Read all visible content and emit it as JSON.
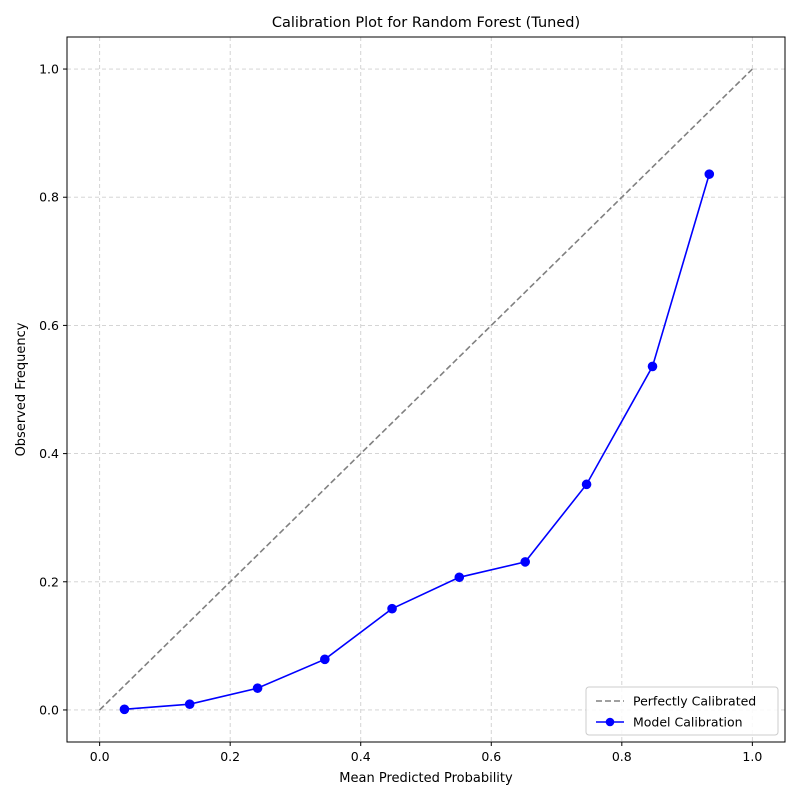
{
  "chart_data": {
    "type": "line",
    "title": "Calibration Plot for Random Forest (Tuned)",
    "xlabel": "Mean Predicted Probability",
    "ylabel": "Observed Frequency",
    "xlim": [
      -0.05,
      1.05
    ],
    "ylim": [
      -0.05,
      1.05
    ],
    "xticks": [
      0.0,
      0.2,
      0.4,
      0.6,
      0.8,
      1.0
    ],
    "yticks": [
      0.0,
      0.2,
      0.4,
      0.6,
      0.8,
      1.0
    ],
    "xtick_labels": [
      "0.0",
      "0.2",
      "0.4",
      "0.6",
      "0.8",
      "1.0"
    ],
    "ytick_labels": [
      "0.0",
      "0.2",
      "0.4",
      "0.6",
      "0.8",
      "1.0"
    ],
    "grid": true,
    "legend_position": "lower-right",
    "series": [
      {
        "name": "Perfectly Calibrated",
        "color": "#808080",
        "style": "dashed",
        "marker": "none",
        "x": [
          0.0,
          1.0
        ],
        "y": [
          0.0,
          1.0
        ]
      },
      {
        "name": "Model Calibration",
        "color": "#0000ff",
        "style": "solid",
        "marker": "circle",
        "x": [
          0.038,
          0.138,
          0.242,
          0.345,
          0.448,
          0.551,
          0.652,
          0.746,
          0.847,
          0.934
        ],
        "y": [
          0.001,
          0.009,
          0.034,
          0.079,
          0.158,
          0.207,
          0.231,
          0.352,
          0.536,
          0.836
        ]
      }
    ]
  }
}
